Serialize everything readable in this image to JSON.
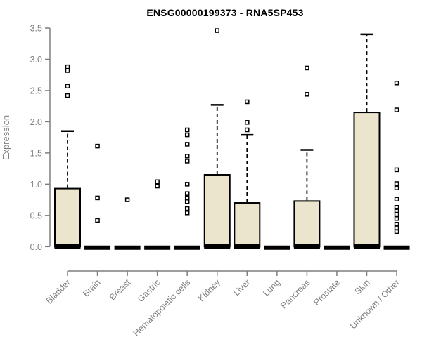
{
  "title": "ENSG00000199373 - RNA5SP453",
  "y_axis": {
    "label": "Expression",
    "ticks": [
      0.0,
      0.5,
      1.0,
      1.5,
      2.0,
      2.5,
      3.0,
      3.5
    ]
  },
  "x_axis": {
    "categories": [
      "Bladder",
      "Brain",
      "Breast",
      "Gastric",
      "Hematopoietic cells",
      "Kidney",
      "Liver",
      "Lung",
      "Pancreas",
      "Prostate",
      "Skin",
      "Unknown / Other"
    ]
  },
  "colors": {
    "box_fill": "#EAE5CC",
    "box_stroke": "#000000",
    "median": "#000000",
    "whisker": "#000000",
    "outlier_stroke": "#000000",
    "outlier_fill": "#FFFFFF",
    "axis": "#7F7F7F",
    "tick_text": "#7F7F7F",
    "title_text": "#000000",
    "background": "#FFFFFF"
  },
  "chart_data": {
    "type": "boxplot",
    "title": "ENSG00000199373 - RNA5SP453",
    "xlabel": "",
    "ylabel": "Expression",
    "ylim": [
      0,
      3.5
    ],
    "grid": false,
    "legend": false,
    "categories": [
      "Bladder",
      "Brain",
      "Breast",
      "Gastric",
      "Hematopoietic cells",
      "Kidney",
      "Liver",
      "Lung",
      "Pancreas",
      "Prostate",
      "Skin",
      "Unknown / Other"
    ],
    "series": [
      {
        "name": "Bladder",
        "q1": 0,
        "median": 0.02,
        "q3": 0.93,
        "whisker_low": 0,
        "whisker_high": 1.85,
        "outliers": [
          2.88,
          2.82,
          2.57,
          2.42
        ]
      },
      {
        "name": "Brain",
        "q1": 0,
        "median": 0,
        "q3": 0,
        "whisker_low": 0,
        "whisker_high": 0,
        "outliers": [
          1.61,
          0.78,
          0.42
        ]
      },
      {
        "name": "Breast",
        "q1": 0,
        "median": 0,
        "q3": 0,
        "whisker_low": 0,
        "whisker_high": 0,
        "outliers": [
          0.75
        ]
      },
      {
        "name": "Gastric",
        "q1": 0,
        "median": 0,
        "q3": 0,
        "whisker_low": 0,
        "whisker_high": 0,
        "outliers": [
          1.04,
          0.97
        ]
      },
      {
        "name": "Hematopoietic cells",
        "q1": 0,
        "median": 0,
        "q3": 0,
        "whisker_low": 0,
        "whisker_high": 0,
        "outliers": [
          1.87,
          1.79,
          1.64,
          1.45,
          1.37,
          1.0,
          0.85,
          0.78,
          0.72,
          0.61,
          0.54
        ]
      },
      {
        "name": "Kidney",
        "q1": 0,
        "median": 0.02,
        "q3": 1.15,
        "whisker_low": 0,
        "whisker_high": 2.27,
        "outliers": [
          3.46
        ]
      },
      {
        "name": "Liver",
        "q1": 0,
        "median": 0.02,
        "q3": 0.7,
        "whisker_low": 0,
        "whisker_high": 1.79,
        "outliers": [
          2.32,
          1.99,
          1.87
        ]
      },
      {
        "name": "Lung",
        "q1": 0,
        "median": 0,
        "q3": 0,
        "whisker_low": 0,
        "whisker_high": 0,
        "outliers": []
      },
      {
        "name": "Pancreas",
        "q1": 0,
        "median": 0.02,
        "q3": 0.73,
        "whisker_low": 0,
        "whisker_high": 1.55,
        "outliers": [
          2.86,
          2.44
        ]
      },
      {
        "name": "Prostate",
        "q1": 0,
        "median": 0,
        "q3": 0,
        "whisker_low": 0,
        "whisker_high": 0,
        "outliers": []
      },
      {
        "name": "Skin",
        "q1": 0,
        "median": 0.02,
        "q3": 2.15,
        "whisker_low": 0,
        "whisker_high": 3.4,
        "outliers": []
      },
      {
        "name": "Unknown / Other",
        "q1": 0,
        "median": 0,
        "q3": 0,
        "whisker_low": 0,
        "whisker_high": 0,
        "outliers": [
          2.62,
          2.19,
          1.23,
          1.01,
          0.94,
          0.76,
          0.63,
          0.57,
          0.52,
          0.45,
          0.36,
          0.3,
          0.24
        ]
      }
    ]
  }
}
